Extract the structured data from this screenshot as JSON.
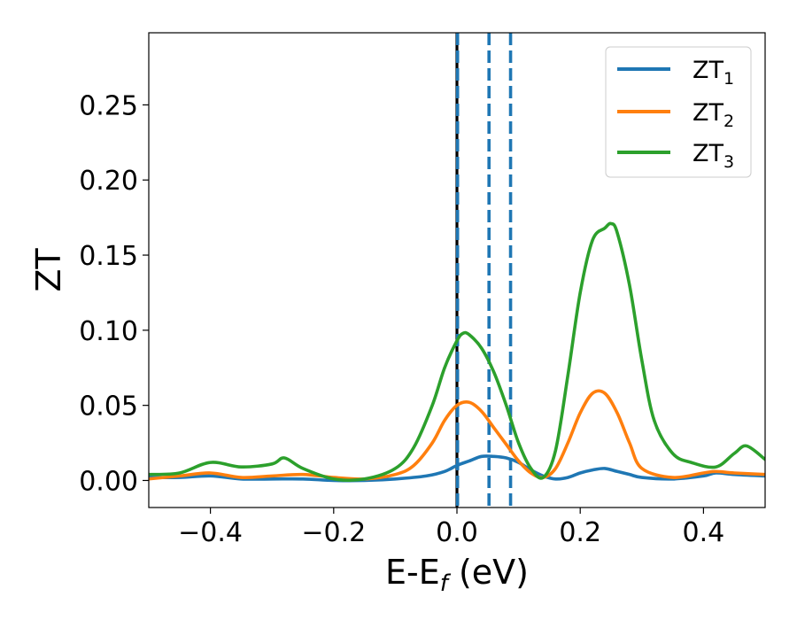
{
  "chart_data": {
    "type": "line",
    "xlabel": "E-E$_f$ (eV)",
    "xlabel_parts": {
      "base": "E-E",
      "sub": "f",
      "rest": " (eV)"
    },
    "ylabel": "ZT",
    "xlim": [
      -0.5,
      0.5
    ],
    "ylim": [
      -0.018,
      0.298
    ],
    "xticks": [
      -0.4,
      -0.2,
      0.0,
      0.2,
      0.4
    ],
    "xtick_labels": [
      "−0.4",
      "−0.2",
      "0.0",
      "0.2",
      "0.4"
    ],
    "yticks": [
      0.0,
      0.05,
      0.1,
      0.15,
      0.2,
      0.25
    ],
    "ytick_labels": [
      "0.00",
      "0.05",
      "0.10",
      "0.15",
      "0.20",
      "0.25"
    ],
    "grid": false,
    "legend_position": "top-right",
    "series": [
      {
        "name": "ZT$_1$",
        "label_parts": {
          "base": "ZT",
          "sub": "1"
        },
        "color": "#1f77b4",
        "x": [
          -0.5,
          -0.45,
          -0.4,
          -0.35,
          -0.3,
          -0.25,
          -0.2,
          -0.15,
          -0.1,
          -0.05,
          -0.02,
          0.0,
          0.02,
          0.04,
          0.06,
          0.08,
          0.1,
          0.12,
          0.14,
          0.16,
          0.18,
          0.2,
          0.22,
          0.24,
          0.26,
          0.28,
          0.3,
          0.35,
          0.4,
          0.42,
          0.45,
          0.5
        ],
        "y": [
          0.002,
          0.002,
          0.003,
          0.001,
          0.001,
          0.001,
          0.0,
          0.0,
          0.001,
          0.003,
          0.006,
          0.01,
          0.013,
          0.016,
          0.016,
          0.015,
          0.012,
          0.007,
          0.003,
          0.001,
          0.002,
          0.005,
          0.007,
          0.008,
          0.006,
          0.004,
          0.002,
          0.001,
          0.003,
          0.005,
          0.004,
          0.003
        ]
      },
      {
        "name": "ZT$_2$",
        "label_parts": {
          "base": "ZT",
          "sub": "2"
        },
        "color": "#ff7f0e",
        "x": [
          -0.5,
          -0.45,
          -0.4,
          -0.35,
          -0.3,
          -0.25,
          -0.2,
          -0.15,
          -0.1,
          -0.07,
          -0.04,
          -0.02,
          0.0,
          0.02,
          0.04,
          0.06,
          0.08,
          0.1,
          0.12,
          0.14,
          0.16,
          0.18,
          0.2,
          0.22,
          0.24,
          0.26,
          0.28,
          0.3,
          0.35,
          0.4,
          0.42,
          0.45,
          0.5
        ],
        "y": [
          0.001,
          0.003,
          0.005,
          0.002,
          0.003,
          0.004,
          0.002,
          0.001,
          0.004,
          0.01,
          0.025,
          0.04,
          0.05,
          0.052,
          0.046,
          0.035,
          0.024,
          0.013,
          0.005,
          0.002,
          0.008,
          0.025,
          0.045,
          0.058,
          0.058,
          0.045,
          0.025,
          0.008,
          0.002,
          0.005,
          0.006,
          0.005,
          0.004
        ]
      },
      {
        "name": "ZT$_3$",
        "label_parts": {
          "base": "ZT",
          "sub": "3"
        },
        "color": "#2ca02c",
        "x": [
          -0.5,
          -0.45,
          -0.4,
          -0.35,
          -0.3,
          -0.28,
          -0.25,
          -0.2,
          -0.15,
          -0.1,
          -0.07,
          -0.04,
          -0.02,
          0.0,
          0.01,
          0.02,
          0.04,
          0.06,
          0.08,
          0.1,
          0.12,
          0.14,
          0.16,
          0.18,
          0.2,
          0.22,
          0.24,
          0.25,
          0.26,
          0.28,
          0.3,
          0.32,
          0.35,
          0.38,
          0.42,
          0.45,
          0.47,
          0.5
        ],
        "y": [
          0.004,
          0.005,
          0.012,
          0.009,
          0.011,
          0.015,
          0.008,
          0.001,
          0.001,
          0.008,
          0.022,
          0.05,
          0.075,
          0.093,
          0.098,
          0.097,
          0.088,
          0.072,
          0.05,
          0.025,
          0.008,
          0.002,
          0.02,
          0.07,
          0.125,
          0.16,
          0.168,
          0.171,
          0.165,
          0.13,
          0.08,
          0.04,
          0.018,
          0.012,
          0.009,
          0.018,
          0.023,
          0.014
        ]
      }
    ],
    "vlines": [
      {
        "x": 0.0,
        "style": "solid",
        "color": "#000000"
      },
      {
        "x": 0.001,
        "style": "dashed",
        "color": "#1f77b4"
      },
      {
        "x": 0.052,
        "style": "dashed",
        "color": "#1f77b4"
      },
      {
        "x": 0.087,
        "style": "dashed",
        "color": "#1f77b4"
      }
    ]
  }
}
